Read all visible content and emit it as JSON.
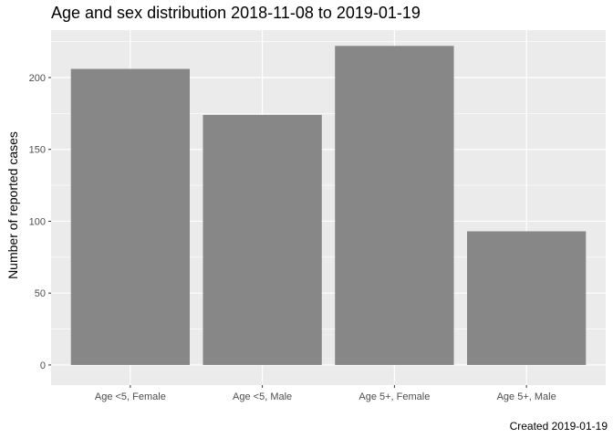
{
  "chart_data": {
    "type": "bar",
    "title": "Age and sex distribution 2018-11-08 to 2019-01-19",
    "ylabel": "Number of reported cases",
    "xlabel": "",
    "caption": "Created 2019-01-19",
    "categories": [
      "Age <5, Female",
      "Age <5, Male",
      "Age 5+, Female",
      "Age 5+, Male"
    ],
    "values": [
      206,
      174,
      222,
      93
    ],
    "ylim": [
      -14,
      233
    ],
    "yticks": [
      0,
      50,
      100,
      150,
      200
    ],
    "grid": true,
    "legend": "none",
    "colors": {
      "bar": "#878787",
      "panel": "#ebebeb",
      "grid_major": "#ffffff",
      "axis_text": "#4d4d4d"
    }
  }
}
